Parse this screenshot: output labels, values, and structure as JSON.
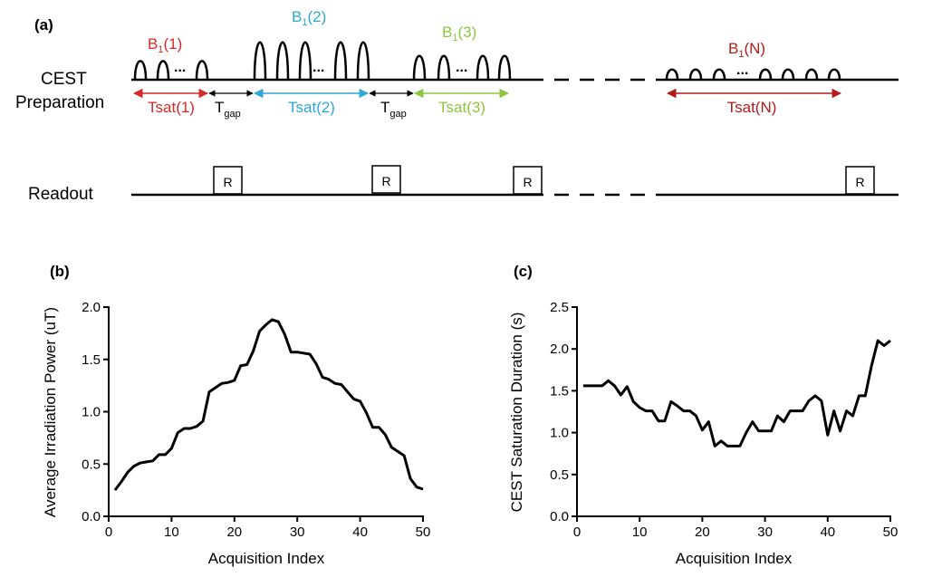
{
  "panel_a": {
    "label": "(a)",
    "row_cest_line1": "CEST",
    "row_cest_line2": "Preparation",
    "row_readout": "Readout",
    "b1_prefix": "B",
    "b1_sub": "1",
    "blocks": [
      {
        "suffix": "(1)",
        "tsat": "Tsat(1)",
        "color": "#d42a2a"
      },
      {
        "suffix": "(2)",
        "tsat": "Tsat(2)",
        "color": "#2fa6d8"
      },
      {
        "suffix": "(3)",
        "tsat": "Tsat(3)",
        "color": "#8cc63f"
      },
      {
        "suffix": "(N)",
        "tsat": "Tsat(N)",
        "color": "#b31b1b"
      }
    ],
    "dots": "...",
    "tgap_main": "T",
    "tgap_sub": "gap",
    "readout_label": "R"
  },
  "chart_data": [
    {
      "panel_label": "(b)",
      "type": "line",
      "title": "",
      "xlabel": "Acquisition Index",
      "ylabel": "Average Irradiation Power (uT)",
      "xlim": [
        0,
        50
      ],
      "ylim": [
        0,
        2.0
      ],
      "xticks": [
        0,
        10,
        20,
        30,
        40,
        50
      ],
      "yticks": [
        0.0,
        0.5,
        1.0,
        1.5,
        2.0
      ],
      "xtick_labels": [
        "0",
        "10",
        "20",
        "30",
        "40",
        "50"
      ],
      "ytick_labels": [
        "0.0",
        "0.5",
        "1.0",
        "1.5",
        "2.0"
      ],
      "grid": false,
      "series": [
        {
          "name": "Average Irradiation Power",
          "x": [
            1,
            2,
            3,
            4,
            5,
            6,
            7,
            8,
            9,
            10,
            11,
            12,
            13,
            14,
            15,
            16,
            17,
            18,
            19,
            20,
            21,
            22,
            23,
            24,
            25,
            26,
            27,
            28,
            29,
            30,
            31,
            32,
            33,
            34,
            35,
            36,
            37,
            38,
            39,
            40,
            41,
            42,
            43,
            44,
            45,
            46,
            47,
            48,
            49,
            50
          ],
          "y": [
            0.25,
            0.33,
            0.42,
            0.48,
            0.51,
            0.52,
            0.53,
            0.59,
            0.59,
            0.65,
            0.8,
            0.84,
            0.84,
            0.86,
            0.91,
            1.19,
            1.23,
            1.27,
            1.28,
            1.3,
            1.44,
            1.45,
            1.58,
            1.77,
            1.83,
            1.88,
            1.86,
            1.74,
            1.57,
            1.57,
            1.56,
            1.55,
            1.46,
            1.33,
            1.31,
            1.27,
            1.26,
            1.19,
            1.12,
            1.1,
            0.99,
            0.85,
            0.85,
            0.78,
            0.66,
            0.62,
            0.58,
            0.36,
            0.28,
            0.26
          ]
        }
      ]
    },
    {
      "panel_label": "(c)",
      "type": "line",
      "title": "",
      "xlabel": "Acquisition Index",
      "ylabel": "CEST Saturation Duration (s)",
      "xlim": [
        0,
        50
      ],
      "ylim": [
        0,
        2.5
      ],
      "xticks": [
        0,
        10,
        20,
        30,
        40,
        50
      ],
      "yticks": [
        0.0,
        0.5,
        1.0,
        1.5,
        2.0,
        2.5
      ],
      "xtick_labels": [
        "0",
        "10",
        "20",
        "30",
        "40",
        "50"
      ],
      "ytick_labels": [
        "0.0",
        "0.5",
        "1.0",
        "1.5",
        "2.0",
        "2.5"
      ],
      "grid": false,
      "series": [
        {
          "name": "CEST Saturation Duration",
          "x": [
            1,
            2,
            3,
            4,
            5,
            6,
            7,
            8,
            9,
            10,
            11,
            12,
            13,
            14,
            15,
            16,
            17,
            18,
            19,
            20,
            21,
            22,
            23,
            24,
            25,
            26,
            27,
            28,
            29,
            30,
            31,
            32,
            33,
            34,
            35,
            36,
            37,
            38,
            39,
            40,
            41,
            42,
            43,
            44,
            45,
            46,
            47,
            48,
            49,
            50
          ],
          "y": [
            1.56,
            1.56,
            1.56,
            1.56,
            1.62,
            1.56,
            1.45,
            1.55,
            1.37,
            1.3,
            1.26,
            1.26,
            1.14,
            1.14,
            1.37,
            1.32,
            1.26,
            1.26,
            1.2,
            1.03,
            1.13,
            0.84,
            0.9,
            0.84,
            0.84,
            0.84,
            1.0,
            1.13,
            1.02,
            1.02,
            1.02,
            1.2,
            1.13,
            1.26,
            1.26,
            1.26,
            1.38,
            1.44,
            1.38,
            0.97,
            1.26,
            1.02,
            1.26,
            1.2,
            1.44,
            1.44,
            1.8,
            2.1,
            2.04,
            2.1
          ]
        }
      ]
    }
  ]
}
